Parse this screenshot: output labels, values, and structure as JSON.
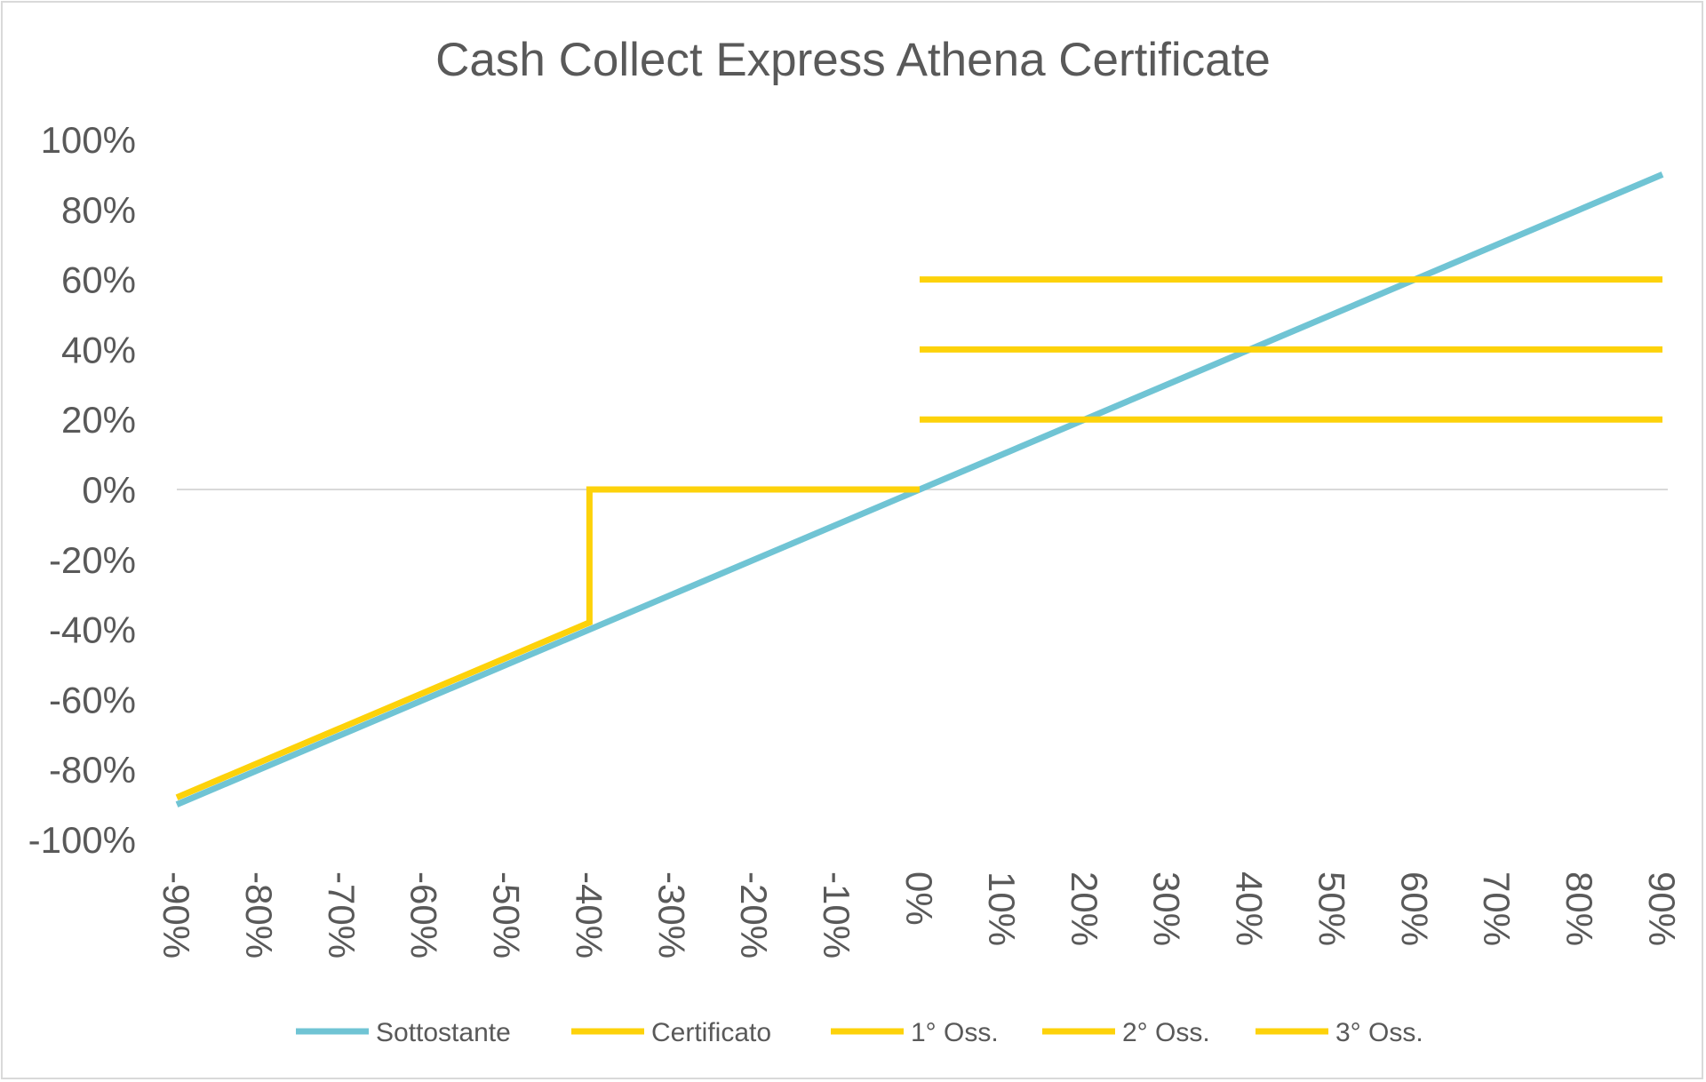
{
  "chart_data": {
    "type": "line",
    "title": "Cash Collect Express Athena Certificate",
    "xlabel": "",
    "ylabel": "",
    "xlim": [
      -0.9,
      0.9
    ],
    "ylim": [
      -1.0,
      1.0
    ],
    "x_ticks": [
      -0.9,
      -0.8,
      -0.7,
      -0.6,
      -0.5,
      -0.4,
      -0.3,
      -0.2,
      -0.1,
      0,
      0.1,
      0.2,
      0.3,
      0.4,
      0.5,
      0.6,
      0.7,
      0.8,
      0.9
    ],
    "x_tick_labels": [
      "-90%",
      "-80%",
      "-70%",
      "-60%",
      "-50%",
      "-40%",
      "-30%",
      "-20%",
      "-10%",
      "0%",
      "10%",
      "20%",
      "30%",
      "40%",
      "50%",
      "60%",
      "70%",
      "80%",
      "90%"
    ],
    "y_ticks": [
      1.0,
      0.8,
      0.6,
      0.4,
      0.2,
      0,
      -0.2,
      -0.4,
      -0.6,
      -0.8,
      -1.0
    ],
    "y_tick_labels": [
      "100%",
      "80%",
      "60%",
      "40%",
      "20%",
      "0%",
      "-20%",
      "-40%",
      "-60%",
      "-80%",
      "-100%"
    ],
    "grid": false,
    "zero_line": true,
    "legend_position": "bottom",
    "series": [
      {
        "name": "Sottostante",
        "color": "#70c4d4",
        "x": [
          -0.9,
          0.9
        ],
        "y": [
          -0.9,
          0.9
        ]
      },
      {
        "name": "Certificato",
        "color": "#fdd20a",
        "x": [
          -0.9,
          -0.4,
          -0.4,
          0
        ],
        "y": [
          -0.88,
          -0.38,
          0,
          0
        ]
      },
      {
        "name": "1° Oss.",
        "color": "#fdd20a",
        "x": [
          0,
          0.9
        ],
        "y": [
          0.2,
          0.2
        ]
      },
      {
        "name": "2° Oss.",
        "color": "#fdd20a",
        "x": [
          0,
          0.9
        ],
        "y": [
          0.4,
          0.4
        ]
      },
      {
        "name": "3° Oss.",
        "color": "#fdd20a",
        "x": [
          0,
          0.9
        ],
        "y": [
          0.6,
          0.6
        ]
      }
    ]
  }
}
